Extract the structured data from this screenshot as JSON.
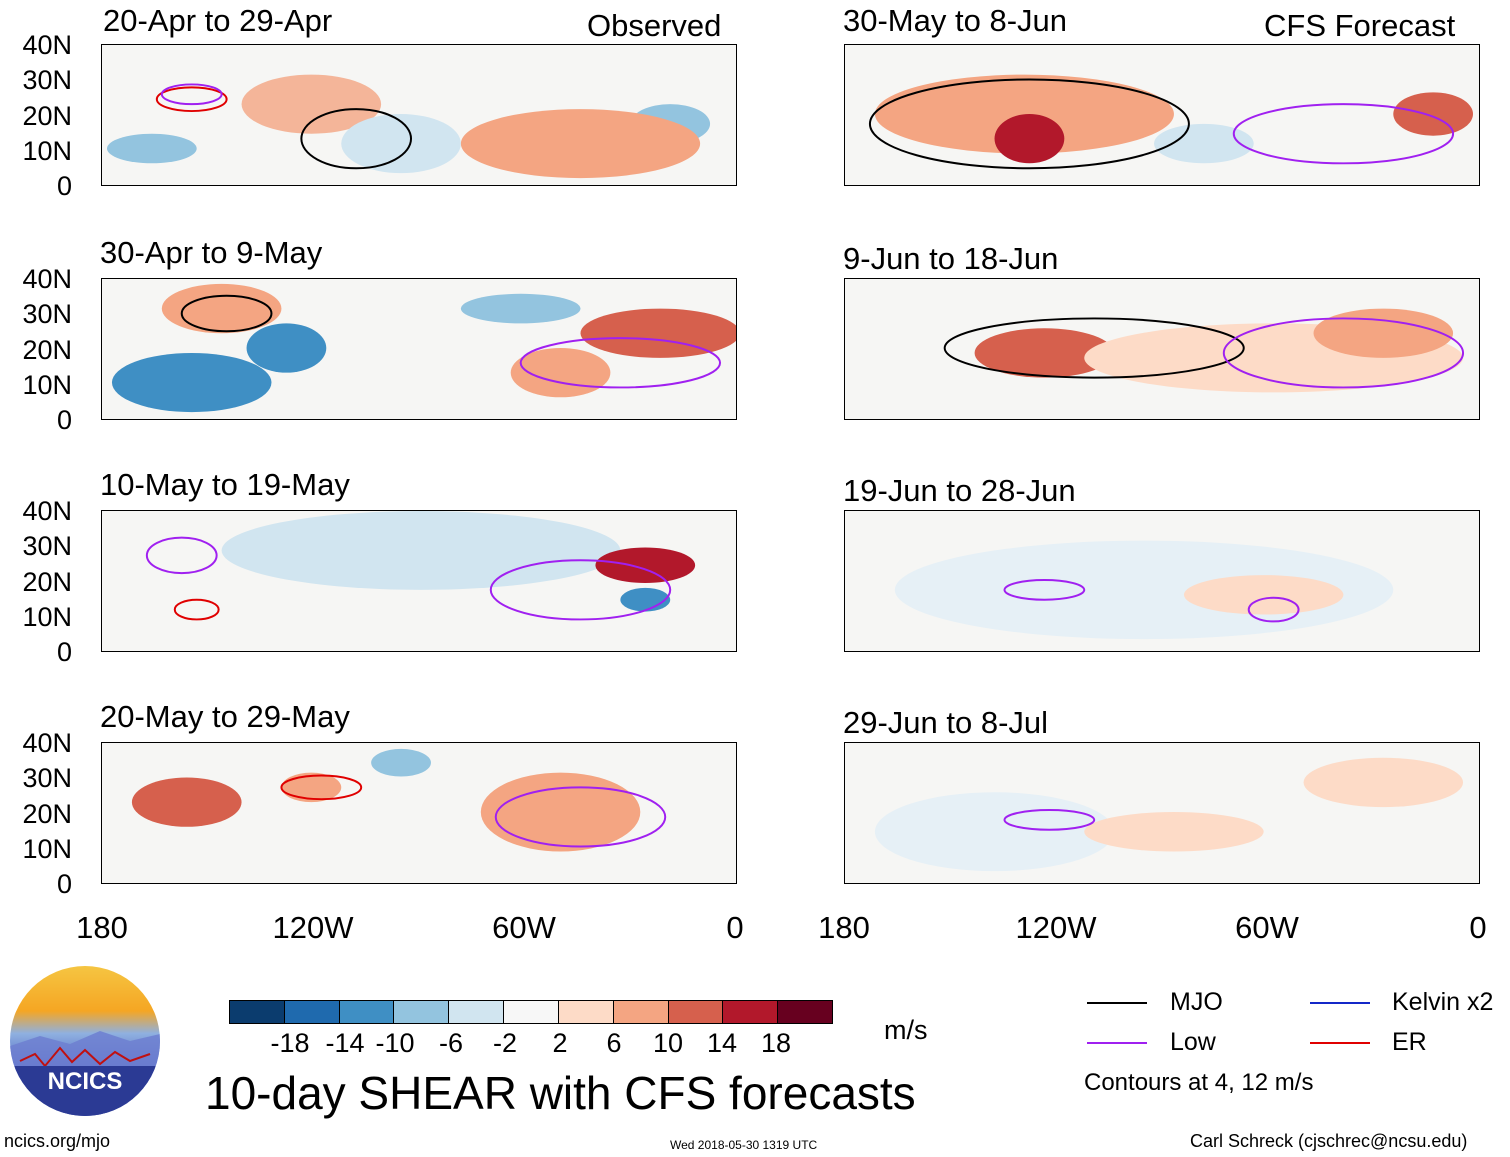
{
  "chart_data": {
    "type": "heatmap",
    "title": "10-day SHEAR with CFS forecasts",
    "column_tags": [
      "Observed",
      "CFS Forecast"
    ],
    "panels": [
      {
        "label": "20-Apr to 29-Apr",
        "column": "Observed"
      },
      {
        "label": "30-Apr to 9-May",
        "column": "Observed"
      },
      {
        "label": "10-May to 19-May",
        "column": "Observed"
      },
      {
        "label": "20-May to 29-May",
        "column": "Observed"
      },
      {
        "label": "30-May to 8-Jun",
        "column": "CFS Forecast"
      },
      {
        "label": "9-Jun to 18-Jun",
        "column": "CFS Forecast"
      },
      {
        "label": "19-Jun to 28-Jun",
        "column": "CFS Forecast"
      },
      {
        "label": "29-Jun to 8-Jul",
        "column": "CFS Forecast"
      }
    ],
    "y_ticks": [
      "40N",
      "30N",
      "20N",
      "10N",
      "0"
    ],
    "x_ticks": [
      "180",
      "120W",
      "60W",
      "0"
    ],
    "xlim": [
      -180,
      0
    ],
    "ylim": [
      0,
      40
    ],
    "colorbar": {
      "units": "m/s",
      "ticks": [
        "-18",
        "-14",
        "-10",
        "-6",
        "-2",
        "2",
        "6",
        "10",
        "14",
        "18"
      ],
      "colors": [
        "#0b3c6e",
        "#1f6aae",
        "#3f8fc4",
        "#93c4df",
        "#d1e5f0",
        "#f7f7f7",
        "#fddbc7",
        "#f4a582",
        "#d6604d",
        "#b2182b",
        "#67001f"
      ]
    },
    "legend": [
      {
        "label": "MJO",
        "color": "#000000"
      },
      {
        "label": "Kelvin x2",
        "color": "#1428c8"
      },
      {
        "label": "Low",
        "color": "#a020f0"
      },
      {
        "label": "ER",
        "color": "#e00000"
      }
    ],
    "contour_note": "Contours at 4, 12 m/s"
  },
  "logo_text": "NCICS",
  "footer": {
    "url": "ncics.org/mjo",
    "timestamp": "Wed 2018-05-30 1319 UTC",
    "author": "Carl Schreck (cjschrec@ncsu.edu)"
  }
}
